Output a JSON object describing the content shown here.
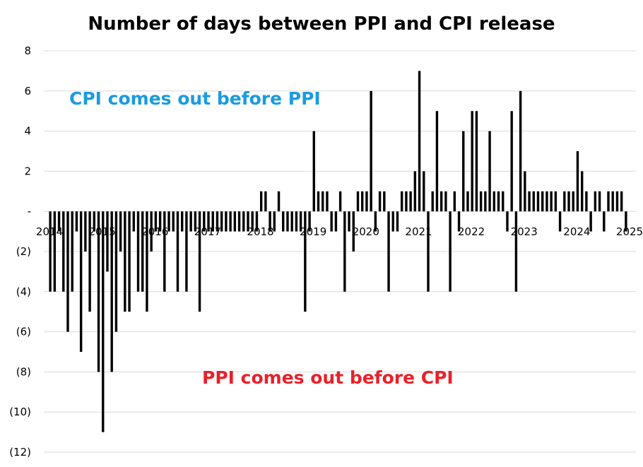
{
  "chart_data": {
    "type": "bar",
    "title": "Number of days between PPI and CPI release",
    "xlabel": "",
    "ylabel": "",
    "ylim": [
      -12,
      8
    ],
    "y_ticks": [
      {
        "value": 8,
        "label": "8"
      },
      {
        "value": 6,
        "label": "6"
      },
      {
        "value": 4,
        "label": "4"
      },
      {
        "value": 2,
        "label": "2"
      },
      {
        "value": 0,
        "label": "-"
      },
      {
        "value": -2,
        "label": "(2)"
      },
      {
        "value": -4,
        "label": "(4)"
      },
      {
        "value": -6,
        "label": "(6)"
      },
      {
        "value": -8,
        "label": "(8)"
      },
      {
        "value": -10,
        "label": "(10)"
      },
      {
        "value": -12,
        "label": "(12)"
      }
    ],
    "x_ticks": [
      "2014",
      "2015",
      "2016",
      "2017",
      "2018",
      "2019",
      "2020",
      "2021",
      "2022",
      "2023",
      "2024",
      "2025"
    ],
    "grid": true,
    "bar_color": "#000000",
    "start": "2014-01",
    "values": [
      -4,
      -4,
      -1,
      -4,
      -6,
      -4,
      -1,
      -7,
      -2,
      -5,
      -1,
      -8,
      -11,
      -3,
      -8,
      -6,
      -2,
      -5,
      -5,
      -1,
      -4,
      -4,
      -5,
      -2,
      -1,
      -1,
      -4,
      -1,
      -1,
      -4,
      -1,
      -4,
      -1,
      -1,
      -5,
      -1,
      -1,
      -1,
      -1,
      -1,
      -1,
      -1,
      -1,
      -1,
      -1,
      -1,
      -1,
      -1,
      1,
      1,
      -1,
      -1,
      1,
      -1,
      -1,
      -1,
      -1,
      -1,
      -5,
      -1,
      4,
      1,
      1,
      1,
      -1,
      -1,
      1,
      -4,
      -1,
      -2,
      1,
      1,
      1,
      6,
      -1,
      1,
      1,
      -4,
      -1,
      -1,
      1,
      1,
      1,
      2,
      7,
      2,
      -4,
      1,
      5,
      1,
      1,
      -4,
      1,
      -1,
      4,
      1,
      5,
      5,
      1,
      1,
      4,
      1,
      1,
      1,
      -1,
      5,
      -4,
      6,
      2,
      1,
      1,
      1,
      1,
      1,
      1,
      1,
      -1,
      1,
      1,
      1,
      3,
      2,
      1,
      -1,
      1,
      1,
      -1,
      1,
      1,
      1,
      1,
      -1
    ],
    "annotations": [
      {
        "text": "CPI comes out before PPI",
        "color": "#1a9be0"
      },
      {
        "text": "PPI comes out before CPI",
        "color": "#e8212b"
      }
    ]
  }
}
